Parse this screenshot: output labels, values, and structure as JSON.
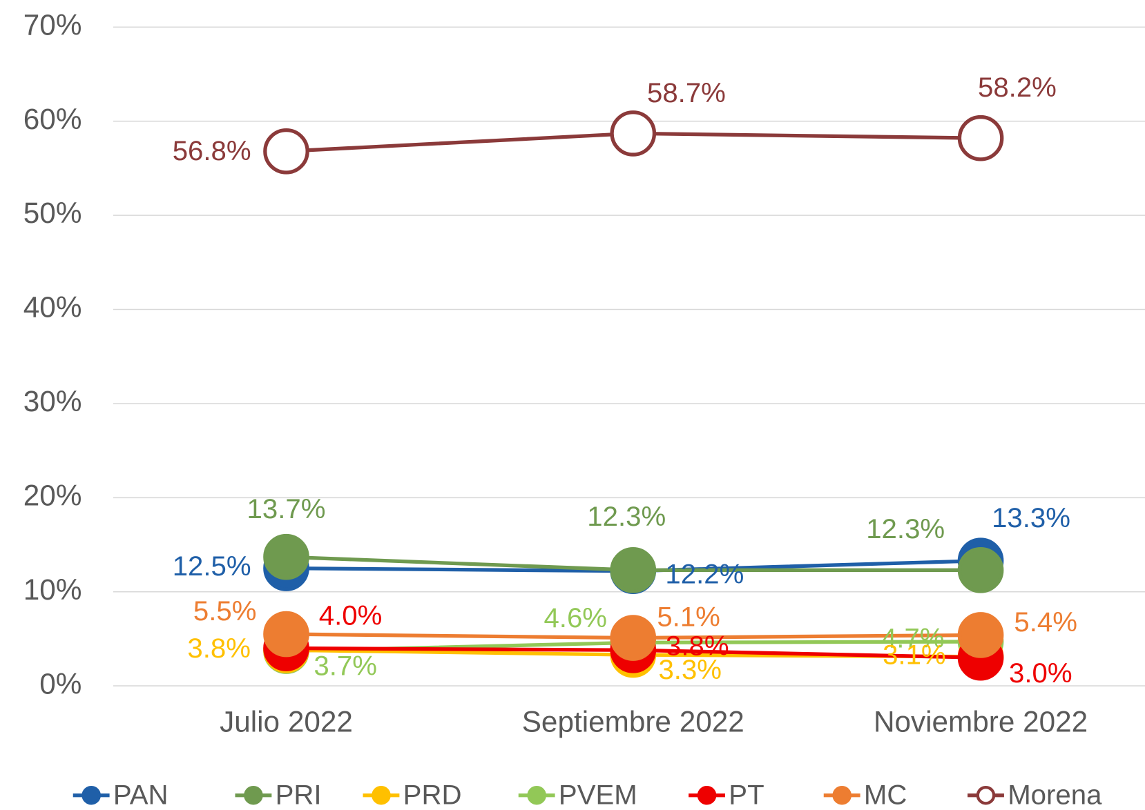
{
  "chart_data": {
    "type": "line",
    "categories": [
      "Julio 2022",
      "Septiembre 2022",
      "Noviembre 2022"
    ],
    "ylim": [
      0,
      70
    ],
    "yticks": [
      {
        "value": 0,
        "label": "0%"
      },
      {
        "value": 10,
        "label": "10%"
      },
      {
        "value": 20,
        "label": "20%"
      },
      {
        "value": 30,
        "label": "30%"
      },
      {
        "value": 40,
        "label": "40%"
      },
      {
        "value": 50,
        "label": "50%"
      },
      {
        "value": 60,
        "label": "60%"
      },
      {
        "value": 70,
        "label": "70%"
      }
    ],
    "grid": true,
    "legend": "bottom",
    "series": [
      {
        "name": "PAN",
        "color": "#1f5fa8",
        "values": [
          12.5,
          12.2,
          13.3
        ],
        "value_labels": [
          "12.5%",
          "12.2%",
          "13.3%"
        ]
      },
      {
        "name": "PRI",
        "color": "#6f9a4f",
        "values": [
          13.7,
          12.3,
          12.3
        ],
        "value_labels": [
          "13.7%",
          "12.3%",
          "12.3%"
        ]
      },
      {
        "name": "PRD",
        "color": "#ffc000",
        "values": [
          3.8,
          3.3,
          3.1
        ],
        "value_labels": [
          "3.8%",
          "3.3%",
          "3.1%"
        ]
      },
      {
        "name": "PVEM",
        "color": "#92c857",
        "values": [
          3.7,
          4.6,
          4.7
        ],
        "value_labels": [
          "3.7%",
          "4.6%",
          "4.7%"
        ]
      },
      {
        "name": "PT",
        "color": "#ee0000",
        "values": [
          4.0,
          3.8,
          3.0
        ],
        "value_labels": [
          "4.0%",
          "3.8%",
          "3.0%"
        ]
      },
      {
        "name": "MC",
        "color": "#ed7d31",
        "values": [
          5.5,
          5.1,
          5.4
        ],
        "value_labels": [
          "5.5%",
          "5.1%",
          "5.4%"
        ]
      },
      {
        "name": "Morena",
        "color": "#8b3a3a",
        "values": [
          56.8,
          58.7,
          58.2
        ],
        "value_labels": [
          "56.8%",
          "58.7%",
          "58.2%"
        ]
      }
    ]
  }
}
